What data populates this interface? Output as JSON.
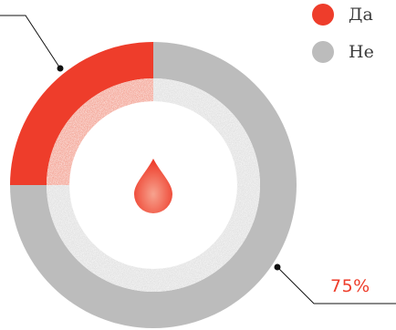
{
  "chart_data": {
    "type": "pie",
    "categories": [
      "Да",
      "Не"
    ],
    "values": [
      25,
      75
    ],
    "colors": [
      "#ee3d2b",
      "#bcbcbc"
    ],
    "inner_colors": [
      "#f4a89a",
      "#e2e2e2"
    ],
    "callouts": [
      {
        "category": "Да",
        "label": ""
      },
      {
        "category": "Не",
        "label": "75%"
      }
    ],
    "center_icon": "blood-drop-icon",
    "center_icon_color": "#ee3d2b",
    "legend_position": "top-right"
  }
}
